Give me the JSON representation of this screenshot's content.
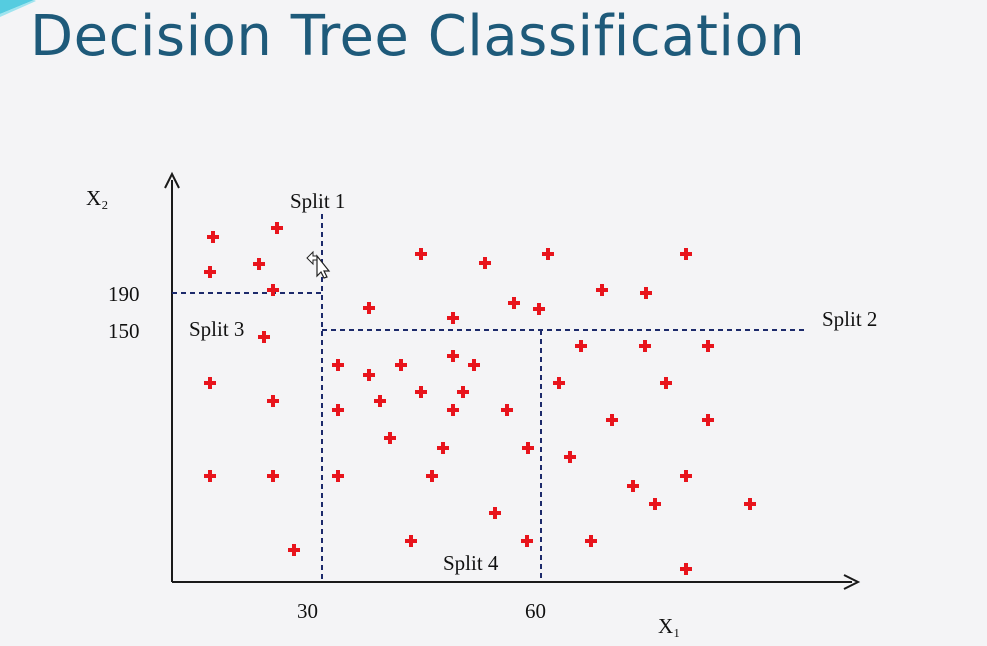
{
  "title": "Decision Tree Classification",
  "axes": {
    "x_label": "X₁",
    "y_label": "X₂"
  },
  "ticks": {
    "x": [
      "30",
      "60"
    ],
    "y": [
      "190",
      "150"
    ]
  },
  "splits": [
    "Split 1",
    "Split 2",
    "Split 3",
    "Split 4"
  ],
  "colors": {
    "title": "#1e5a7a",
    "points": "#e8141c",
    "split_line": "#1c2a6b",
    "axis": "#1a1a1a",
    "accent": "#38c4dc"
  },
  "icons": [
    "mouse-cursor-icon"
  ]
}
